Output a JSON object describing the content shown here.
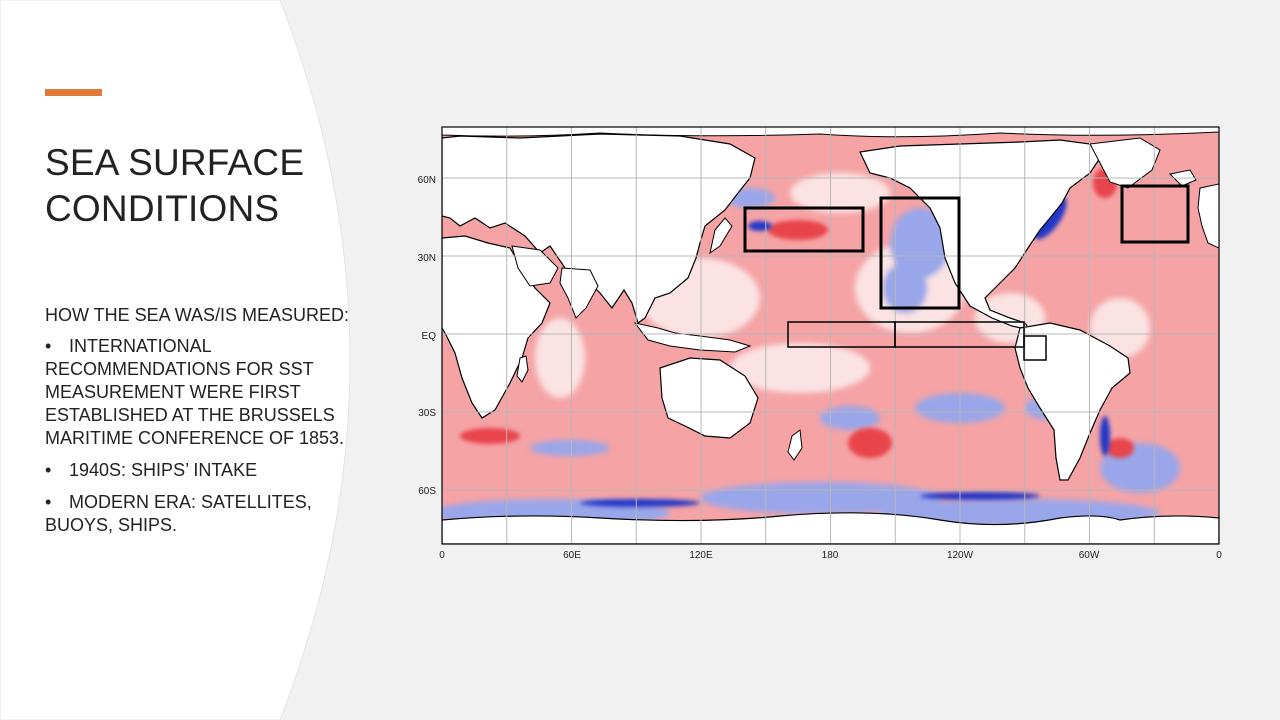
{
  "slide": {
    "title_line1": "SEA SURFACE",
    "title_line2": "CONDITIONS",
    "intro": "HOW THE SEA WAS/IS MEASURED:",
    "bullets": [
      {
        "marker": "•",
        "text": "INTERNATIONAL RECOMMENDATIONS FOR SST MEASUREMENT WERE FIRST ESTABLISHED AT THE BRUSSELS MARITIME CONFERENCE OF 1853."
      },
      {
        "marker": "•",
        "text": "1940S: SHIPS’ INTAKE"
      },
      {
        "marker": "•",
        "text": "MODERN ERA: SATELLITES, BUOYS, SHIPS."
      }
    ]
  },
  "colors": {
    "accent": "#e07a36",
    "background": "#f1f1f1",
    "panel": "#ffffff",
    "warm_anomaly": "#f5a3a5",
    "strong_warm": "#e8454b",
    "cool_anomaly": "#9aa6ea",
    "strong_cool": "#2438c8"
  },
  "map": {
    "lat_labels": [
      "60N",
      "30N",
      "EQ",
      "30S",
      "60S"
    ],
    "lon_labels": [
      "0",
      "60E",
      "120E",
      "180",
      "120W",
      "60W",
      "0"
    ]
  }
}
